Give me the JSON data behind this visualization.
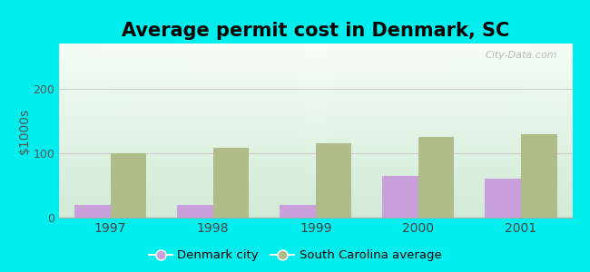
{
  "title": "Average permit cost in Denmark, SC",
  "years": [
    1997,
    1998,
    1999,
    2000,
    2001
  ],
  "denmark_values": [
    20,
    20,
    20,
    65,
    60
  ],
  "sc_values": [
    100,
    108,
    115,
    125,
    130
  ],
  "denmark_color": "#c9a0dc",
  "sc_color": "#b0bc8a",
  "ylabel": "$1000s",
  "ylim": [
    0,
    270
  ],
  "yticks": [
    0,
    100,
    200
  ],
  "bar_width": 0.35,
  "outer_background": "#00eeee",
  "title_fontsize": 15,
  "watermark": "City-Data.com",
  "legend_denmark": "Denmark city",
  "legend_sc": "South Carolina average",
  "grid_color": "#cccccc",
  "bg_color_top": "#f0faf6",
  "bg_color_bottom": "#d8eedc"
}
